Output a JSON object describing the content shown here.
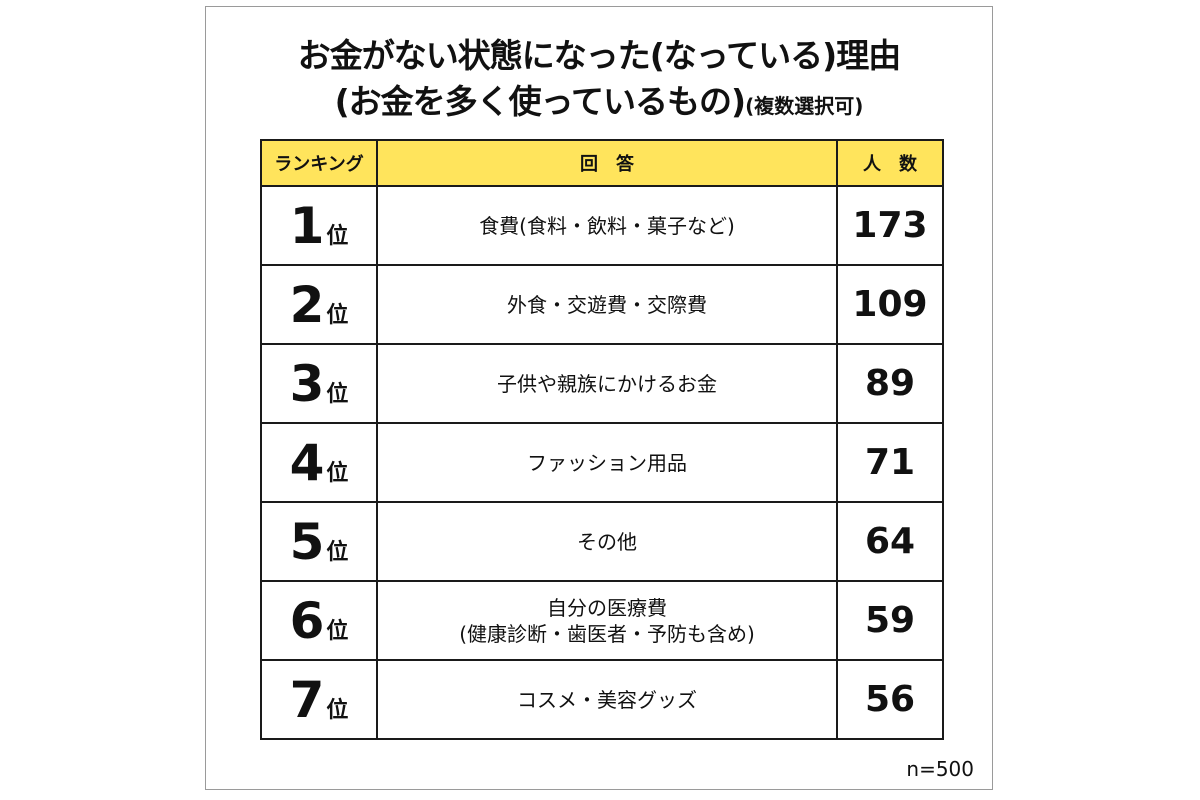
{
  "title": {
    "line1": "お金がない状態になった(なっている)理由",
    "line2": "(お金を多く使っているもの)",
    "note": "(複数選択可)"
  },
  "colors": {
    "header_bg": "#ffe45c",
    "border": "#1a1a1a",
    "text": "#111111",
    "frame": "#9a9a9a"
  },
  "chart_data": {
    "type": "table",
    "headers": [
      "ランキング",
      "回　答",
      "人　数"
    ],
    "rank_suffix": "位",
    "rows": [
      {
        "rank": "1",
        "answer": "食費(食料・飲料・菓子など)",
        "count": "173"
      },
      {
        "rank": "2",
        "answer": "外食・交遊費・交際費",
        "count": "109"
      },
      {
        "rank": "3",
        "answer": "子供や親族にかけるお金",
        "count": "89"
      },
      {
        "rank": "4",
        "answer": "ファッション用品",
        "count": "71"
      },
      {
        "rank": "5",
        "answer": "その他",
        "count": "64"
      },
      {
        "rank": "6",
        "answer": "自分の医療費",
        "answer_sub": "(健康診断・歯医者・予防も含め)",
        "count": "59"
      },
      {
        "rank": "7",
        "answer": "コスメ・美容グッズ",
        "count": "56"
      }
    ],
    "sample_size": "n=500"
  }
}
